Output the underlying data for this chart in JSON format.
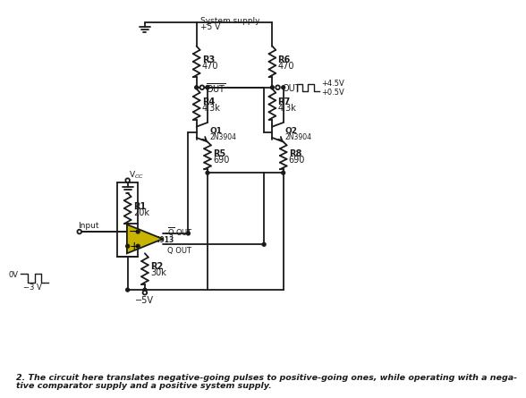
{
  "bg_color": "#ffffff",
  "line_color": "#1a1a1a",
  "triangle_fill": "#c8b400",
  "triangle_stroke": "#1a1a1a",
  "caption_line1": "2. The circuit here translates negative-going pulses to positive-going ones, while operating with a nega-",
  "caption_line2": "tive comparator supply and a positive system supply."
}
